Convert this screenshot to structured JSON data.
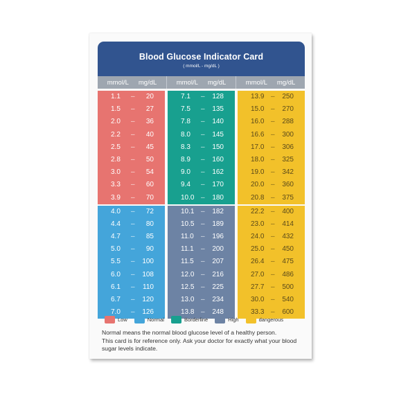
{
  "header": {
    "title": "Blood Glucose Indicator Card",
    "subtitle": "( mmol/L - mg/dL )"
  },
  "column_header": {
    "mmol": "mmol/L",
    "mg": "mg/dL",
    "dash": "–"
  },
  "low": [
    [
      "1.1",
      "20"
    ],
    [
      "1.5",
      "27"
    ],
    [
      "2.0",
      "36"
    ],
    [
      "2.2",
      "40"
    ],
    [
      "2.5",
      "45"
    ],
    [
      "2.8",
      "50"
    ],
    [
      "3.0",
      "54"
    ],
    [
      "3.3",
      "60"
    ],
    [
      "3.9",
      "70"
    ]
  ],
  "normal": [
    [
      "4.0",
      "72"
    ],
    [
      "4.4",
      "80"
    ],
    [
      "4.7",
      "85"
    ],
    [
      "5.0",
      "90"
    ],
    [
      "5.5",
      "100"
    ],
    [
      "6.0",
      "108"
    ],
    [
      "6.1",
      "110"
    ],
    [
      "6.7",
      "120"
    ],
    [
      "7.0",
      "126"
    ]
  ],
  "borderline": [
    [
      "7.1",
      "128"
    ],
    [
      "7.5",
      "135"
    ],
    [
      "7.8",
      "140"
    ],
    [
      "8.0",
      "145"
    ],
    [
      "8.3",
      "150"
    ],
    [
      "8.9",
      "160"
    ],
    [
      "9.0",
      "162"
    ],
    [
      "9.4",
      "170"
    ],
    [
      "10.0",
      "180"
    ]
  ],
  "high": [
    [
      "10.1",
      "182"
    ],
    [
      "10.5",
      "189"
    ],
    [
      "11.0",
      "196"
    ],
    [
      "11.1",
      "200"
    ],
    [
      "11.5",
      "207"
    ],
    [
      "12.0",
      "216"
    ],
    [
      "12.5",
      "225"
    ],
    [
      "13.0",
      "234"
    ],
    [
      "13.8",
      "248"
    ]
  ],
  "dangerous": [
    [
      "13.9",
      "250"
    ],
    [
      "15.0",
      "270"
    ],
    [
      "16.0",
      "288"
    ],
    [
      "16.6",
      "300"
    ],
    [
      "17.0",
      "306"
    ],
    [
      "18.0",
      "325"
    ],
    [
      "19.0",
      "342"
    ],
    [
      "20.0",
      "360"
    ],
    [
      "20.8",
      "375"
    ],
    [
      "22.2",
      "400"
    ],
    [
      "23.0",
      "414"
    ],
    [
      "24.0",
      "432"
    ],
    [
      "25.0",
      "450"
    ],
    [
      "26.4",
      "475"
    ],
    [
      "27.0",
      "486"
    ],
    [
      "27.7",
      "500"
    ],
    [
      "30.0",
      "540"
    ],
    [
      "33.3",
      "600"
    ]
  ],
  "legend": [
    {
      "label": "Low",
      "color": "#e77470"
    },
    {
      "label": "Normal",
      "color": "#44a5da"
    },
    {
      "label": "Borderline",
      "color": "#18a08f"
    },
    {
      "label": "High",
      "color": "#6d83a4"
    },
    {
      "label": "dangerous",
      "color": "#f2c12a"
    }
  ],
  "note": {
    "line1": "Normal means the normal blood glucose level of a healthy person.",
    "line2": "This card is for reference only. Ask your doctor for exactly what your blood",
    "line3": "sugar levels indicate."
  },
  "colors": {
    "header": "#31548f",
    "colhead": "#9ea6b0"
  }
}
